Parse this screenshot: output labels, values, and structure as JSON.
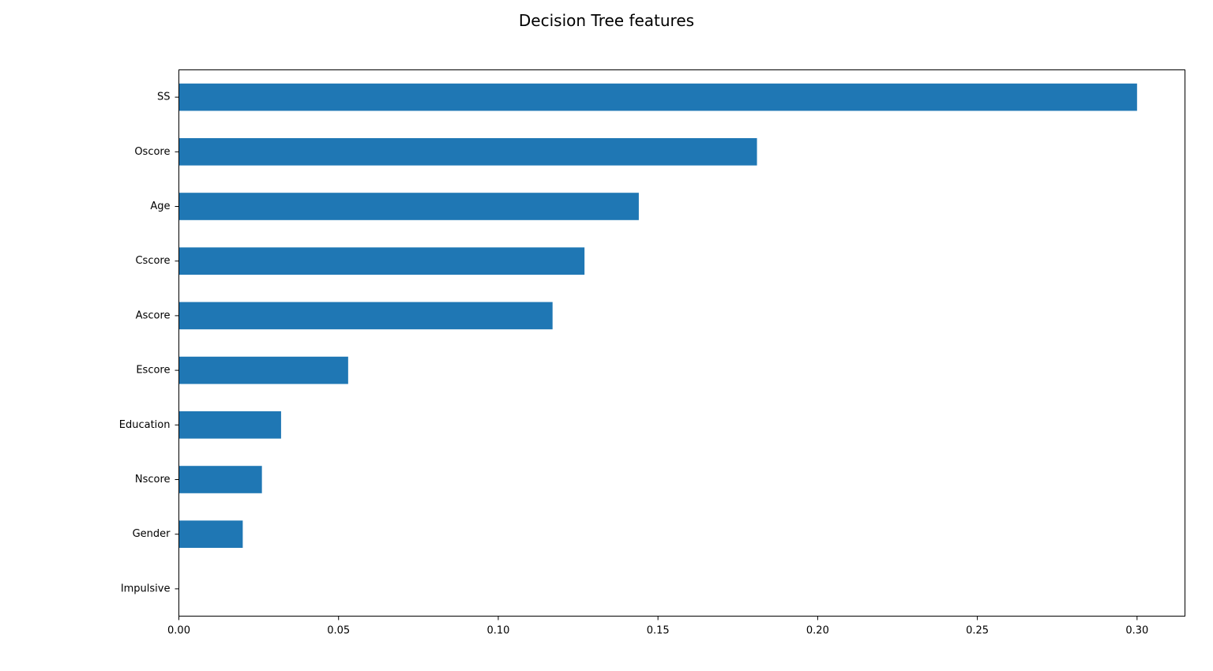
{
  "chart_data": {
    "type": "bar",
    "orientation": "horizontal",
    "title": "Decision Tree features",
    "xlabel": "",
    "ylabel": "",
    "categories": [
      "SS",
      "Oscore",
      "Age",
      "Cscore",
      "Ascore",
      "Escore",
      "Education",
      "Nscore",
      "Gender",
      "Impulsive"
    ],
    "values": [
      0.3,
      0.181,
      0.144,
      0.127,
      0.117,
      0.053,
      0.032,
      0.026,
      0.02,
      0.0
    ],
    "xlim": [
      0.0,
      0.315
    ],
    "xticks": [
      "0.00",
      "0.05",
      "0.10",
      "0.15",
      "0.20",
      "0.25",
      "0.30"
    ],
    "grid": false,
    "legend": "none",
    "bar_color": "#1f77b4"
  }
}
